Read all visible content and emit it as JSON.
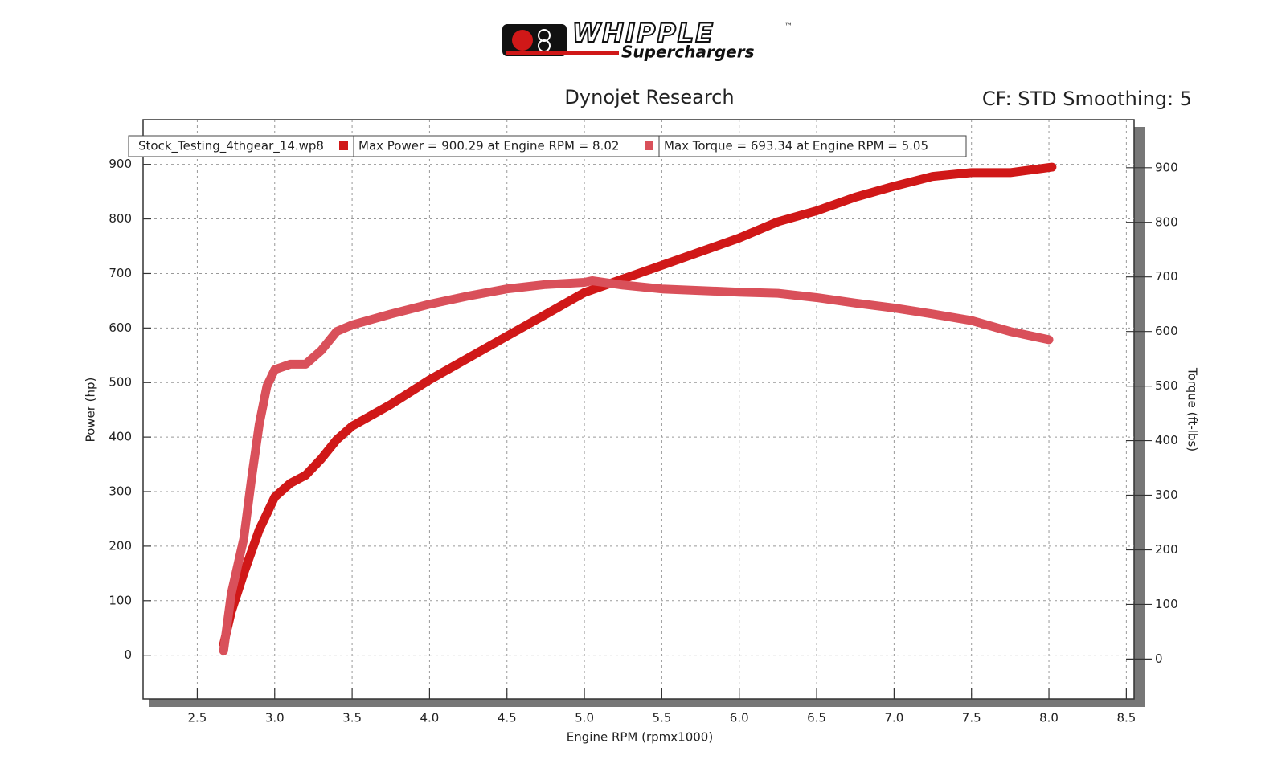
{
  "logo": {
    "brand": "WHIPPLE",
    "tagline": "Superchargers",
    "trademark": "™"
  },
  "chart_data": {
    "type": "line",
    "title": "Dynojet Research",
    "subtitle": "CF: STD Smoothing: 5",
    "legend_title": "Stock_Testing_4thgear_14.wp8",
    "xlabel": "Engine RPM (rpmx1000)",
    "ylabel": "Power (hp)",
    "y2label": "Torque (ft-lbs)",
    "xlim": [
      2.15,
      8.55
    ],
    "ylim": [
      -80,
      982
    ],
    "y2lim": [
      -73,
      988
    ],
    "xticks": [
      2.5,
      {
        "value": 3,
        "label": "3.0"
      },
      3.5,
      {
        "value": 4,
        "label": "4.0"
      },
      4.5,
      {
        "value": 5,
        "label": "5.0"
      },
      5.5,
      {
        "value": 6,
        "label": "6.0"
      },
      6.5,
      {
        "value": 7,
        "label": "7.0"
      },
      7.5,
      {
        "value": 8,
        "label": "8.0"
      },
      8.5
    ],
    "yticks": [
      0,
      100,
      200,
      300,
      400,
      500,
      600,
      700,
      800,
      900
    ],
    "y2ticks": [
      0,
      100,
      200,
      300,
      400,
      500,
      600,
      700,
      800,
      900
    ],
    "grid": true,
    "series": [
      {
        "name": "Max Power = 900.29 at Engine RPM = 8.02",
        "color": "#d01818",
        "x": [
          2.67,
          2.72,
          2.8,
          2.9,
          3.0,
          3.1,
          3.2,
          3.3,
          3.4,
          3.5,
          3.75,
          4.0,
          4.25,
          4.5,
          4.75,
          5.0,
          5.25,
          5.5,
          5.75,
          6.0,
          6.25,
          6.5,
          6.75,
          7.0,
          7.25,
          7.5,
          7.75,
          8.02
        ],
        "values": [
          20,
          80,
          150,
          230,
          290,
          315,
          330,
          360,
          395,
          420,
          460,
          505,
          545,
          585,
          625,
          665,
          690,
          715,
          740,
          765,
          795,
          815,
          840,
          860,
          878,
          885,
          885,
          895
        ]
      },
      {
        "name": "Max Torque = 693.34 at Engine RPM = 5.05",
        "color": "#d9505a",
        "axis": "y2",
        "x": [
          2.67,
          2.72,
          2.8,
          2.85,
          2.9,
          2.95,
          3.0,
          3.1,
          3.2,
          3.3,
          3.4,
          3.5,
          3.75,
          4.0,
          4.25,
          4.5,
          4.75,
          5.0,
          5.05,
          5.25,
          5.5,
          5.75,
          6.0,
          6.25,
          6.5,
          6.75,
          7.0,
          7.25,
          7.5,
          7.75,
          8.0
        ],
        "values": [
          15,
          120,
          220,
          330,
          430,
          500,
          530,
          540,
          540,
          565,
          600,
          612,
          632,
          650,
          665,
          678,
          686,
          690,
          693,
          685,
          678,
          675,
          672,
          670,
          662,
          652,
          643,
          632,
          620,
          600,
          585
        ]
      }
    ]
  }
}
